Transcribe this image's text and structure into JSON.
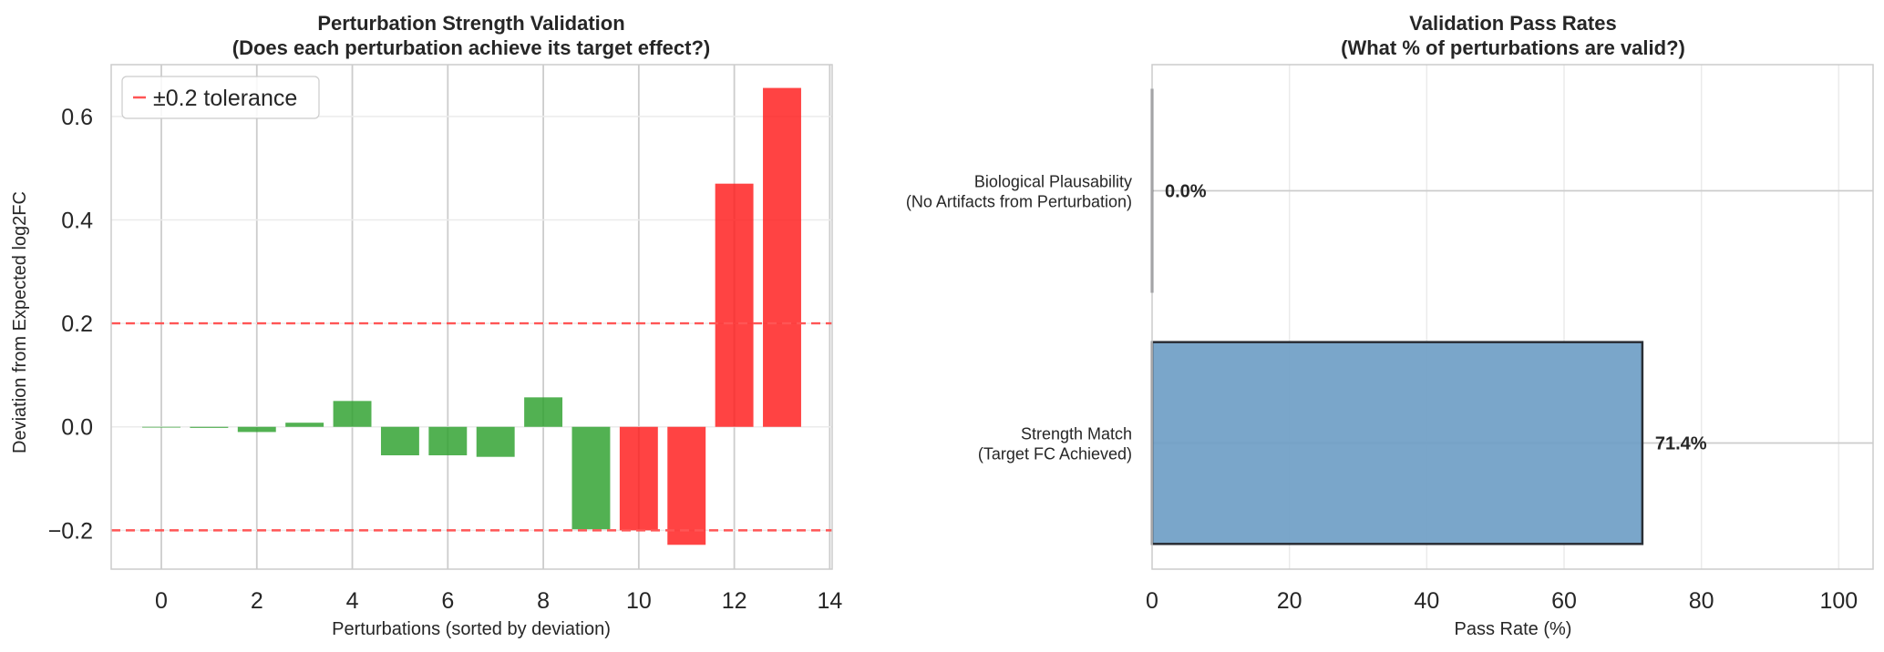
{
  "chart_data": [
    {
      "type": "bar",
      "title": "Perturbation Strength Validation",
      "subtitle": "(Does each perturbation achieve its target effect?)",
      "xlabel": "Perturbations (sorted by deviation)",
      "ylabel": "Deviation from Expected log2FC",
      "xlim": [
        -1.05,
        14.05
      ],
      "ylim": [
        -0.275,
        0.7
      ],
      "xticks": [
        "0",
        "2",
        "4",
        "6",
        "8",
        "10",
        "12",
        "14"
      ],
      "yticks": [
        "−0.2",
        "0.0",
        "0.2",
        "0.4",
        "0.6"
      ],
      "grid": true,
      "legend": {
        "position": "top-left",
        "entries": [
          "±0.2 tolerance"
        ]
      },
      "x": [
        0,
        1,
        2,
        3,
        4,
        5,
        6,
        7,
        8,
        9,
        10,
        11,
        12,
        13
      ],
      "values": [
        0.0,
        -0.002,
        -0.01,
        0.008,
        0.05,
        -0.055,
        -0.055,
        -0.058,
        0.057,
        -0.198,
        -0.2,
        -0.228,
        0.47,
        0.655
      ],
      "bar_colors": [
        "green",
        "green",
        "green",
        "green",
        "green",
        "green",
        "green",
        "green",
        "green",
        "green",
        "red",
        "red",
        "red",
        "red"
      ],
      "reference_lines": [
        0.2,
        -0.2
      ],
      "colors": {
        "pass": "#2ca02c",
        "fail": "#ff1a1a",
        "tolerance": "#ff5555"
      }
    },
    {
      "type": "bar",
      "orientation": "horizontal",
      "title": "Validation Pass Rates",
      "subtitle": "(What % of perturbations are valid?)",
      "xlabel": "Pass Rate (%)",
      "ylabel": "",
      "xlim": [
        0,
        105
      ],
      "xticks": [
        "0",
        "20",
        "40",
        "60",
        "80",
        "100"
      ],
      "categories": [
        {
          "line1": "Biological Plausability",
          "line2": "(No Artifacts from Perturbation)"
        },
        {
          "line1": "Strength Match",
          "line2": "(Target FC Achieved)"
        }
      ],
      "values": [
        0.0,
        71.4
      ],
      "value_labels": [
        "0.0%",
        "71.4%"
      ],
      "grid": true,
      "colors": {
        "bar": "#6f9ec6",
        "edge": "#2a2f36"
      }
    }
  ]
}
